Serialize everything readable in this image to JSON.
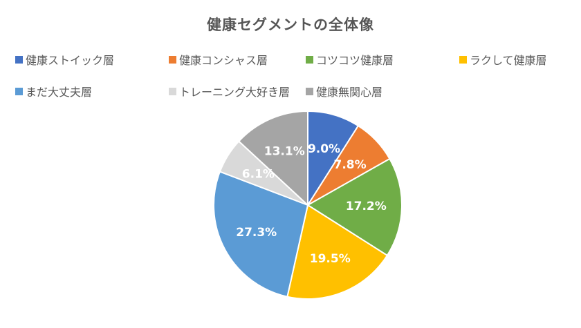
{
  "chart_data": {
    "type": "pie",
    "title": "健康セグメントの全体像",
    "legend_position": "top",
    "series": [
      {
        "name": "健康ストイック層",
        "value": 9.0,
        "label": "9.0%",
        "color": "#4472C4"
      },
      {
        "name": "健康コンシャス層",
        "value": 7.8,
        "label": "7.8%",
        "color": "#ED7D31"
      },
      {
        "name": "コツコツ健康層",
        "value": 17.2,
        "label": "17.2%",
        "color": "#70AD47"
      },
      {
        "name": "ラクして健康層",
        "value": 19.5,
        "label": "19.5%",
        "color": "#FFC000"
      },
      {
        "name": "まだ大丈夫層",
        "value": 27.3,
        "label": "27.3%",
        "color": "#5B9BD5"
      },
      {
        "name": "トレーニング大好き層",
        "value": 6.1,
        "label": "6.1%",
        "color": "#D9D9D9"
      },
      {
        "name": "健康無関心層",
        "value": 13.1,
        "label": "13.1%",
        "color": "#A5A5A5"
      }
    ]
  }
}
